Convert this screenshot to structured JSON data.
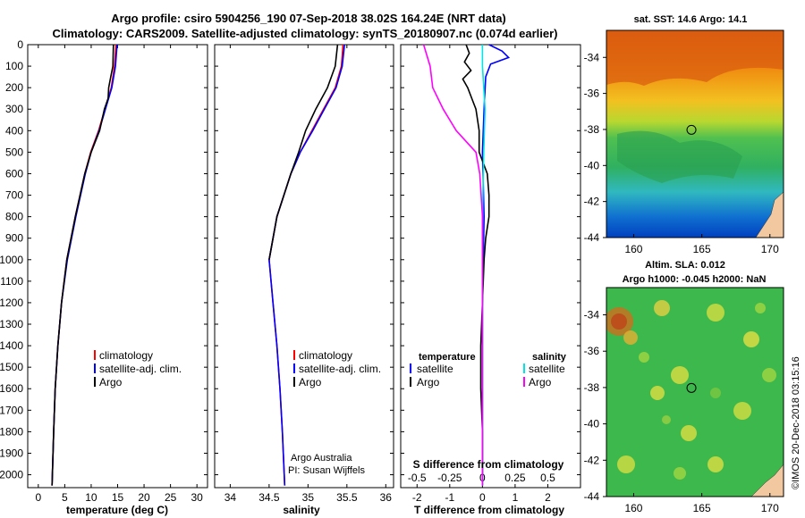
{
  "header": {
    "title_line1": "Argo profile: csiro 5904256_190 07-Sep-2018 38.02S 164.24E (NRT data)",
    "title_line2": "Climatology: CARS2009. Satellite-adjusted climatology: synTS_20180907.nc (0.074d earlier)"
  },
  "colors": {
    "climatology": "#ff0000",
    "satellite": "#0000ff",
    "argo": "#000000",
    "salinity_sat": "#00e5e5",
    "salinity_argo": "#ff00ff"
  },
  "depth_axis": {
    "ticks": [
      0,
      100,
      200,
      300,
      400,
      500,
      600,
      700,
      800,
      900,
      1000,
      1100,
      1200,
      1300,
      1400,
      1500,
      1600,
      1700,
      1800,
      1900,
      2000
    ],
    "range": [
      0,
      2060
    ]
  },
  "chart_data": [
    {
      "type": "line",
      "xlabel": "temperature (deg C)",
      "xlim": [
        -2,
        32
      ],
      "xticks": [
        0,
        5,
        10,
        15,
        20,
        25,
        30
      ],
      "legend": [
        "climatology",
        "satellite-adj. clim.",
        "Argo"
      ],
      "series": [
        {
          "name": "climatology",
          "color": "#ff0000",
          "depth": [
            0,
            100,
            200,
            300,
            400,
            500,
            600,
            800,
            1000,
            1200,
            1400,
            1600,
            1800,
            2050
          ],
          "values": [
            14.7,
            14.4,
            13.8,
            12.6,
            11.4,
            9.9,
            8.8,
            7.0,
            5.4,
            4.4,
            3.7,
            3.2,
            2.9,
            2.6
          ]
        },
        {
          "name": "satellite-adj. clim.",
          "color": "#0000ff",
          "depth": [
            0,
            100,
            200,
            300,
            400,
            500,
            600,
            800,
            1000,
            1200,
            1400,
            1600,
            1800,
            2050
          ],
          "values": [
            14.9,
            14.6,
            13.9,
            12.7,
            11.5,
            10.0,
            8.9,
            7.1,
            5.5,
            4.4,
            3.7,
            3.2,
            2.9,
            2.6
          ]
        },
        {
          "name": "Argo",
          "color": "#000000",
          "depth": [
            0,
            100,
            150,
            200,
            250,
            300,
            400,
            500,
            600,
            800,
            1000,
            1200,
            1400,
            1600,
            1800,
            2050
          ],
          "values": [
            14.2,
            14.1,
            13.7,
            13.3,
            13.2,
            12.5,
            11.6,
            10.0,
            8.8,
            7.0,
            5.4,
            4.4,
            3.7,
            3.2,
            2.9,
            2.6
          ]
        }
      ]
    },
    {
      "type": "line",
      "xlabel": "salinity",
      "xlim": [
        33.8,
        36.1
      ],
      "xticks": [
        34,
        34.5,
        35,
        35.5,
        36
      ],
      "legend": [
        "climatology",
        "satellite-adj. clim.",
        "Argo"
      ],
      "note_line1": "Argo Australia",
      "note_line2": "PI: Susan Wijffels",
      "series": [
        {
          "name": "climatology",
          "color": "#ff0000",
          "depth": [
            0,
            100,
            200,
            300,
            400,
            500,
            600,
            800,
            1000,
            1200,
            1400,
            1600,
            1800,
            2050
          ],
          "values": [
            35.45,
            35.43,
            35.35,
            35.2,
            35.05,
            34.9,
            34.78,
            34.6,
            34.5,
            34.55,
            34.6,
            34.64,
            34.67,
            34.7
          ]
        },
        {
          "name": "satellite-adj. clim.",
          "color": "#0000ff",
          "depth": [
            0,
            100,
            200,
            300,
            400,
            500,
            600,
            800,
            1000,
            1200,
            1400,
            1600,
            1800,
            2050
          ],
          "values": [
            35.47,
            35.44,
            35.36,
            35.21,
            35.06,
            34.9,
            34.78,
            34.6,
            34.5,
            34.55,
            34.6,
            34.64,
            34.67,
            34.7
          ]
        },
        {
          "name": "Argo",
          "color": "#000000",
          "depth": [
            0,
            100,
            200,
            300,
            400,
            500,
            600,
            800,
            1000
          ],
          "values": [
            35.38,
            35.35,
            35.25,
            35.1,
            34.97,
            34.88,
            34.78,
            34.6,
            34.5
          ]
        }
      ]
    },
    {
      "type": "line",
      "xlabel": "T difference from climatology",
      "xlabel_top": "S difference from climatology",
      "xlim": [
        -2.5,
        3
      ],
      "xticks": [
        -2,
        -1,
        0,
        1,
        2
      ],
      "sticks": [
        "-0.5",
        "-0.25",
        "0",
        "0.25",
        "0.5"
      ],
      "legend_temperature": {
        "title": "temperature",
        "items": [
          "satellite",
          "Argo"
        ]
      },
      "legend_salinity": {
        "title": "salinity",
        "items": [
          "satellite",
          "Argo"
        ]
      },
      "series": [
        {
          "name": "temperature satellite",
          "color": "#0000ff",
          "depth": [
            0,
            30,
            60,
            90,
            150,
            300,
            500,
            800,
            1200,
            1600,
            2050
          ],
          "values": [
            0.2,
            0.6,
            0.8,
            0.25,
            0.1,
            0.05,
            0.0,
            0.05,
            0.0,
            0.0,
            0.0
          ]
        },
        {
          "name": "temperature Argo",
          "color": "#000000",
          "depth": [
            0,
            40,
            80,
            120,
            160,
            200,
            260,
            300,
            400,
            500,
            600,
            700,
            800,
            900,
            1000,
            1200,
            1400,
            1600,
            1800,
            2000
          ],
          "values": [
            -0.5,
            -0.4,
            -0.55,
            -0.35,
            -0.6,
            -0.45,
            -0.3,
            -0.2,
            -0.1,
            -0.1,
            0.15,
            0.2,
            0.2,
            0.1,
            0.05,
            0.0,
            -0.05,
            -0.05,
            0.0,
            0.0
          ]
        },
        {
          "name": "salinity satellite",
          "color": "#00e5e5",
          "depth": [
            0,
            100,
            300,
            500,
            800,
            1000,
            1200,
            1500,
            2050
          ],
          "values": [
            0.0,
            0.0,
            0.02,
            0.01,
            0.0,
            0.0,
            0.0,
            0.0,
            0.0
          ]
        },
        {
          "name": "salinity Argo",
          "color": "#ff00ff",
          "depth": [
            0,
            100,
            200,
            300,
            400,
            500,
            600,
            800,
            1000,
            1500,
            2050
          ],
          "values": [
            -0.45,
            -0.4,
            -0.38,
            -0.3,
            -0.2,
            -0.05,
            -0.02,
            0.0,
            0.0,
            0.0,
            0.0
          ]
        }
      ]
    },
    {
      "type": "heatmap",
      "title": "sat. SST: 14.6 Argo: 14.1",
      "xticks": [
        160,
        165,
        170
      ],
      "yticks": [
        -34,
        -36,
        -38,
        -40,
        -42,
        -44
      ],
      "xlim": [
        158,
        171
      ],
      "ylim": [
        -44,
        -32.5
      ],
      "marker": {
        "lon": 164.24,
        "lat": -38.02
      }
    },
    {
      "type": "heatmap",
      "title_line1": "Altim. SLA: 0.012",
      "title_line2": "Argo h1000: -0.045 h2000: NaN",
      "xticks": [
        160,
        165,
        170
      ],
      "yticks": [
        -34,
        -36,
        -38,
        -40,
        -42,
        -44
      ],
      "xlim": [
        158,
        171
      ],
      "ylim": [
        -44,
        -32.5
      ],
      "marker": {
        "lon": 164.24,
        "lat": -38.02
      }
    }
  ],
  "credit": "©IMOS 20-Dec-2018 03:15:16"
}
